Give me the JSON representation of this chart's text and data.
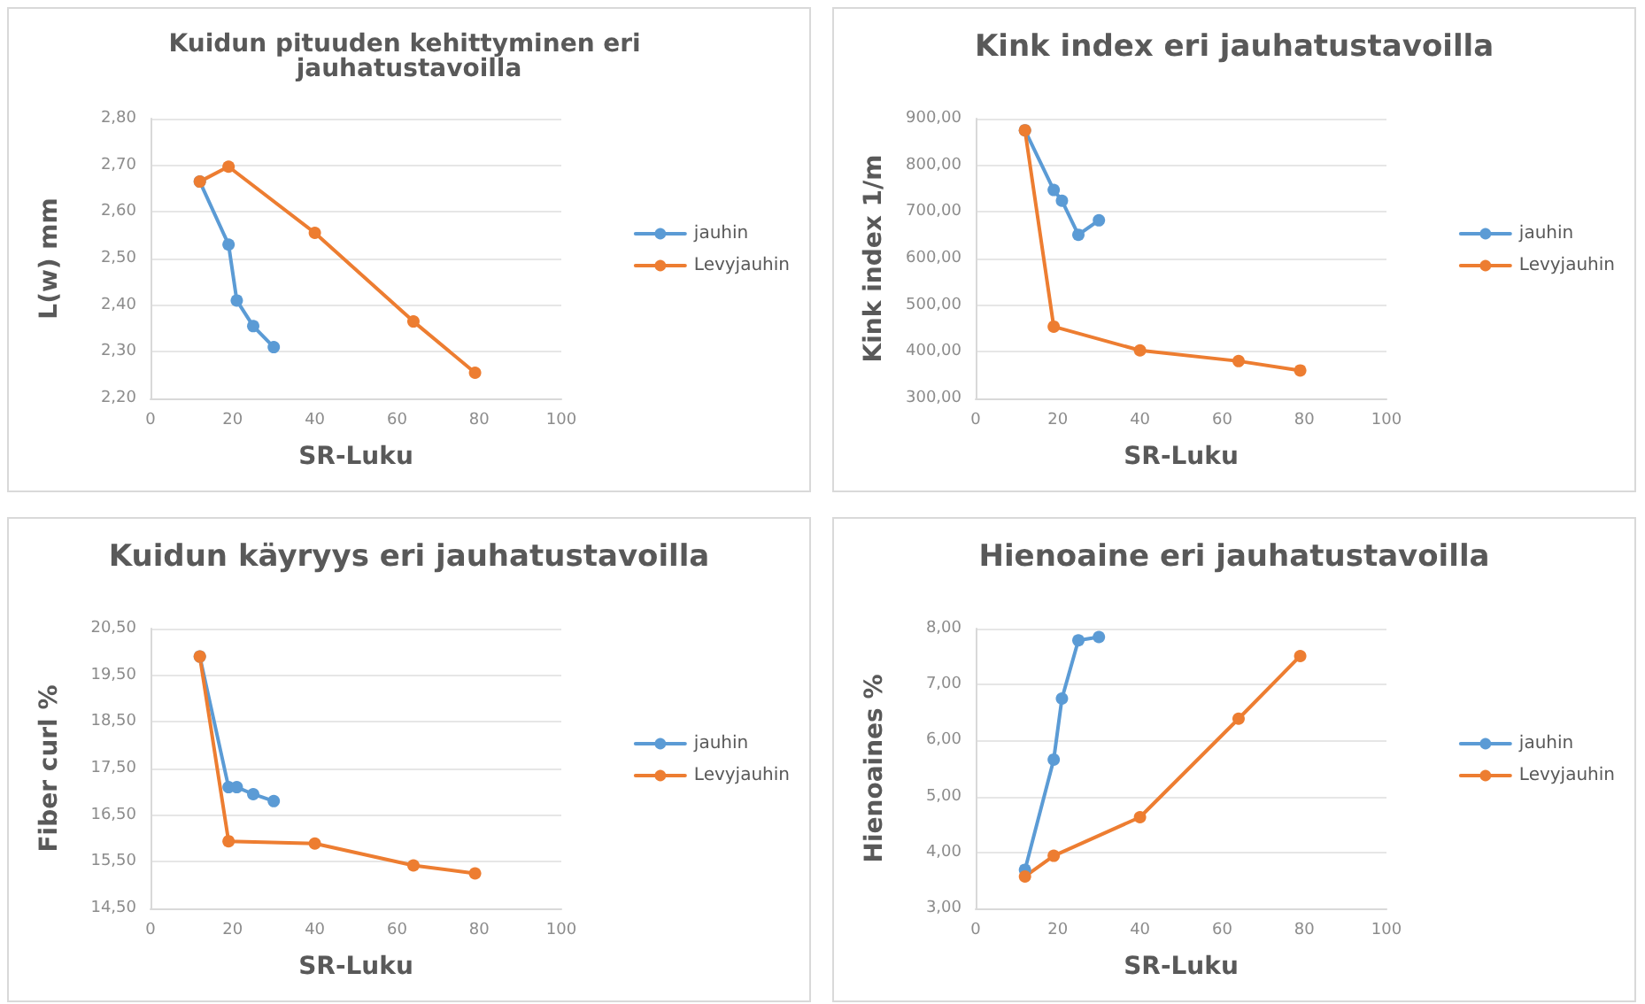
{
  "chart_data": [
    {
      "type": "line",
      "title": "Kuidun pituuden kehittyminen eri jauhatustavoilla",
      "xlabel": "SR-Luku",
      "ylabel": "L(w) mm",
      "legend": "right",
      "grid": "y",
      "marker": "circle",
      "xlim": [
        0,
        100
      ],
      "xticks": [
        0,
        20,
        40,
        60,
        80,
        100
      ],
      "ylim": [
        2.2,
        2.8
      ],
      "yticks": [
        {
          "value": 2.2,
          "label": "2,20"
        },
        {
          "value": 2.3,
          "label": "2,30"
        },
        {
          "value": 2.4,
          "label": "2,40"
        },
        {
          "value": 2.5,
          "label": "2,50"
        },
        {
          "value": 2.6,
          "label": "2,60"
        },
        {
          "value": 2.7,
          "label": "2,70"
        },
        {
          "value": 2.8,
          "label": "2,80"
        }
      ],
      "series": [
        {
          "name": "jauhin",
          "color": "#5b9bd5",
          "x": [
            12,
            19,
            21,
            25,
            30
          ],
          "values": [
            2.665,
            2.53,
            2.41,
            2.355,
            2.31
          ]
        },
        {
          "name": "Levyjauhin",
          "color": "#ed7d31",
          "x": [
            12,
            19,
            40,
            64,
            79
          ],
          "values": [
            2.665,
            2.697,
            2.555,
            2.365,
            2.255
          ]
        }
      ]
    },
    {
      "type": "line",
      "title": "Kink index eri jauhatustavoilla",
      "xlabel": "SR-Luku",
      "ylabel": "Kink index 1/m",
      "legend": "right",
      "grid": "y",
      "marker": "circle",
      "xlim": [
        0,
        100
      ],
      "xticks": [
        0,
        20,
        40,
        60,
        80,
        100
      ],
      "ylim": [
        300,
        900
      ],
      "yticks": [
        {
          "value": 300,
          "label": "300,00"
        },
        {
          "value": 400,
          "label": "400,00"
        },
        {
          "value": 500,
          "label": "500,00"
        },
        {
          "value": 600,
          "label": "600,00"
        },
        {
          "value": 700,
          "label": "700,00"
        },
        {
          "value": 800,
          "label": "800,00"
        },
        {
          "value": 900,
          "label": "900,00"
        }
      ],
      "series": [
        {
          "name": "jauhin",
          "color": "#5b9bd5",
          "x": [
            12,
            19,
            21,
            25,
            30
          ],
          "values": [
            875,
            747,
            724,
            651,
            682
          ]
        },
        {
          "name": "Levyjauhin",
          "color": "#ed7d31",
          "x": [
            12,
            19,
            40,
            64,
            79
          ],
          "values": [
            875,
            454,
            403,
            380,
            360
          ]
        }
      ]
    },
    {
      "type": "line",
      "title": "Kuidun käyryys eri jauhatustavoilla",
      "xlabel": "SR-Luku",
      "ylabel": "Fiber curl %",
      "legend": "right",
      "grid": "y",
      "marker": "circle",
      "xlim": [
        0,
        100
      ],
      "xticks": [
        0,
        20,
        40,
        60,
        80,
        100
      ],
      "ylim": [
        14.5,
        20.5
      ],
      "yticks": [
        {
          "value": 14.5,
          "label": "14,50"
        },
        {
          "value": 15.5,
          "label": "15,50"
        },
        {
          "value": 16.5,
          "label": "16,50"
        },
        {
          "value": 17.5,
          "label": "17,50"
        },
        {
          "value": 18.5,
          "label": "18,50"
        },
        {
          "value": 19.5,
          "label": "19,50"
        },
        {
          "value": 20.5,
          "label": "20,50"
        }
      ],
      "series": [
        {
          "name": "jauhin",
          "color": "#5b9bd5",
          "x": [
            12,
            19,
            21,
            25,
            30
          ],
          "values": [
            19.9,
            17.1,
            17.1,
            16.95,
            16.8
          ]
        },
        {
          "name": "Levyjauhin",
          "color": "#ed7d31",
          "x": [
            12,
            19,
            40,
            64,
            79
          ],
          "values": [
            19.9,
            15.94,
            15.89,
            15.42,
            15.25
          ]
        }
      ]
    },
    {
      "type": "line",
      "title": "Hienoaine eri jauhatustavoilla",
      "xlabel": "SR-Luku",
      "ylabel": "Hienoaines %",
      "legend": "right",
      "grid": "y",
      "marker": "circle",
      "xlim": [
        0,
        100
      ],
      "xticks": [
        0,
        20,
        40,
        60,
        80,
        100
      ],
      "ylim": [
        3,
        8
      ],
      "yticks": [
        {
          "value": 3,
          "label": "3,00"
        },
        {
          "value": 4,
          "label": "4,00"
        },
        {
          "value": 5,
          "label": "5,00"
        },
        {
          "value": 6,
          "label": "6,00"
        },
        {
          "value": 7,
          "label": "7,00"
        },
        {
          "value": 8,
          "label": "8,00"
        }
      ],
      "series": [
        {
          "name": "jauhin",
          "color": "#5b9bd5",
          "x": [
            12,
            19,
            21,
            25,
            30
          ],
          "values": [
            3.69,
            5.66,
            6.75,
            7.79,
            7.85
          ]
        },
        {
          "name": "Levyjauhin",
          "color": "#ed7d31",
          "x": [
            12,
            19,
            40,
            64,
            79
          ],
          "values": [
            3.57,
            3.94,
            4.63,
            6.39,
            7.51
          ]
        }
      ]
    }
  ]
}
